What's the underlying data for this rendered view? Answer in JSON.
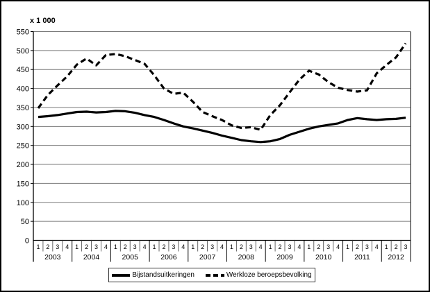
{
  "chart_data": {
    "type": "line",
    "title": "",
    "unit_label": "x 1 000",
    "ylabel": "",
    "xlabel": "",
    "ylim": [
      0,
      550
    ],
    "ytick_step": 50,
    "grid": "horizontal",
    "legend_position": "bottom-center",
    "years": [
      {
        "label": "2003",
        "quarters": [
          "1",
          "2",
          "3",
          "4"
        ]
      },
      {
        "label": "2004",
        "quarters": [
          "1",
          "2",
          "3",
          "4"
        ]
      },
      {
        "label": "2005",
        "quarters": [
          "1",
          "2",
          "3",
          "4"
        ]
      },
      {
        "label": "2006",
        "quarters": [
          "1",
          "2",
          "3",
          "4"
        ]
      },
      {
        "label": "2007",
        "quarters": [
          "1",
          "2",
          "3",
          "4"
        ]
      },
      {
        "label": "2008",
        "quarters": [
          "1",
          "2",
          "3",
          "4"
        ]
      },
      {
        "label": "2009",
        "quarters": [
          "1",
          "2",
          "3",
          "4"
        ]
      },
      {
        "label": "2010",
        "quarters": [
          "1",
          "2",
          "3",
          "4"
        ]
      },
      {
        "label": "2011",
        "quarters": [
          "1",
          "2",
          "3",
          "4"
        ]
      },
      {
        "label": "2012",
        "quarters": [
          "1",
          "2",
          "3"
        ]
      }
    ],
    "series": [
      {
        "name": "Bijstandsuitkeringen",
        "style": "solid",
        "color": "#000000",
        "values": [
          325,
          327,
          330,
          334,
          338,
          339,
          337,
          338,
          341,
          340,
          336,
          330,
          325,
          317,
          308,
          300,
          295,
          289,
          283,
          276,
          270,
          264,
          261,
          259,
          261,
          267,
          278,
          286,
          294,
          300,
          304,
          308,
          317,
          322,
          319,
          317,
          319,
          320,
          323
        ]
      },
      {
        "name": "Werkloze beroepsbevolking",
        "style": "dashed",
        "color": "#000000",
        "values": [
          348,
          383,
          408,
          432,
          463,
          479,
          461,
          488,
          491,
          485,
          475,
          465,
          435,
          400,
          386,
          389,
          365,
          338,
          327,
          317,
          303,
          296,
          298,
          291,
          330,
          356,
          390,
          423,
          447,
          437,
          417,
          402,
          396,
          392,
          395,
          440,
          462,
          482,
          519
        ]
      }
    ]
  },
  "colors": {
    "line": "#000000",
    "grid": "#7a7a7a",
    "axis": "#000000",
    "background": "#ffffff",
    "border": "#000000"
  }
}
